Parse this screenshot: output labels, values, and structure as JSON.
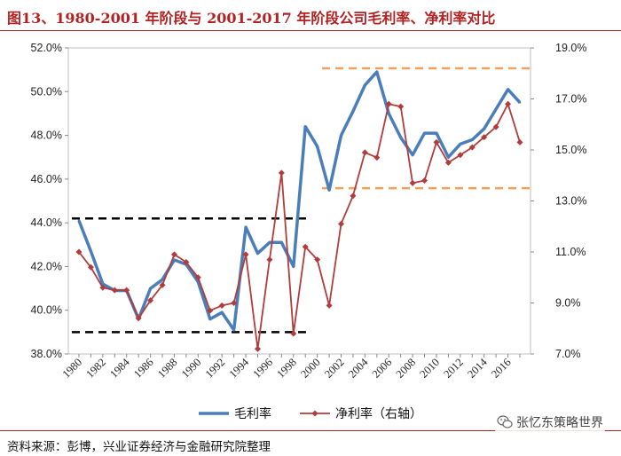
{
  "header": {
    "title": "图13、1980-2001 年阶段与 2001-2017 年阶段公司毛利率、净利率对比"
  },
  "footer": {
    "source": "资料来源：彭博，兴业证券经济与金融研究院整理",
    "watermark": "张忆东策略世界"
  },
  "colors": {
    "gross": "#4a7ebb",
    "net": "#b23b3b",
    "dashed_black": "#000000",
    "dashed_orange": "#f0a05a",
    "title": "#b22222"
  },
  "chart_data": {
    "type": "line",
    "x": [
      1980,
      1981,
      1982,
      1983,
      1984,
      1985,
      1986,
      1987,
      1988,
      1989,
      1990,
      1991,
      1992,
      1993,
      1994,
      1995,
      1996,
      1997,
      1998,
      1999,
      2000,
      2001,
      2002,
      2003,
      2004,
      2005,
      2006,
      2007,
      2008,
      2009,
      2010,
      2011,
      2012,
      2013,
      2014,
      2015,
      2016,
      2017
    ],
    "x_tick_labels": [
      "1980",
      "1982",
      "1984",
      "1986",
      "1988",
      "1990",
      "1992",
      "1994",
      "1996",
      "1998",
      "2000",
      "2002",
      "2004",
      "2006",
      "2008",
      "2010",
      "2012",
      "2014",
      "2016"
    ],
    "series": [
      {
        "name": "毛利率",
        "axis": "left",
        "values": [
          44.1,
          42.7,
          41.2,
          40.9,
          40.9,
          39.6,
          41.0,
          41.4,
          42.3,
          42.1,
          41.3,
          39.6,
          39.9,
          39.1,
          43.8,
          42.6,
          43.1,
          43.1,
          42.0,
          48.4,
          47.5,
          45.5,
          48.0,
          49.1,
          50.3,
          50.9,
          49.0,
          47.9,
          47.1,
          48.1,
          48.1,
          47.0,
          47.6,
          47.8,
          48.3,
          49.2,
          50.1,
          49.5
        ]
      },
      {
        "name": "净利率（右轴）",
        "axis": "right",
        "values": [
          11.0,
          10.4,
          9.6,
          9.5,
          9.5,
          8.4,
          9.1,
          9.7,
          10.9,
          10.6,
          10.0,
          8.7,
          8.9,
          9.0,
          10.9,
          7.2,
          10.7,
          14.1,
          7.8,
          11.2,
          10.7,
          8.9,
          12.1,
          13.2,
          14.9,
          14.7,
          16.8,
          16.7,
          13.7,
          13.8,
          15.3,
          14.5,
          14.8,
          15.1,
          15.5,
          15.9,
          16.8,
          15.3
        ]
      }
    ],
    "yleft": {
      "range": [
        38.0,
        52.0
      ],
      "ticks": [
        "38.0%",
        "40.0%",
        "42.0%",
        "44.0%",
        "46.0%",
        "48.0%",
        "50.0%",
        "52.0%"
      ],
      "tick_values": [
        38,
        40,
        42,
        44,
        46,
        48,
        50,
        52
      ]
    },
    "yright": {
      "range": [
        7.0,
        19.0
      ],
      "ticks": [
        "7.0%",
        "9.0%",
        "11.0%",
        "13.0%",
        "15.0%",
        "17.0%",
        "19.0%"
      ],
      "tick_values": [
        7,
        9,
        11,
        13,
        15,
        17,
        19
      ]
    },
    "reference_lines": [
      {
        "axis": "left",
        "y": 44.2,
        "x_from": 1980,
        "x_to": 1999.5,
        "color": "black"
      },
      {
        "axis": "left",
        "y": 39.0,
        "x_from": 1980,
        "x_to": 1999.5,
        "color": "black"
      },
      {
        "axis": "right",
        "y": 18.2,
        "x_from": 2001,
        "x_to": 2017,
        "color": "orange"
      },
      {
        "axis": "right",
        "y": 13.5,
        "x_from": 2001,
        "x_to": 2017,
        "color": "orange"
      }
    ],
    "grid": false,
    "legend_position": "bottom"
  }
}
